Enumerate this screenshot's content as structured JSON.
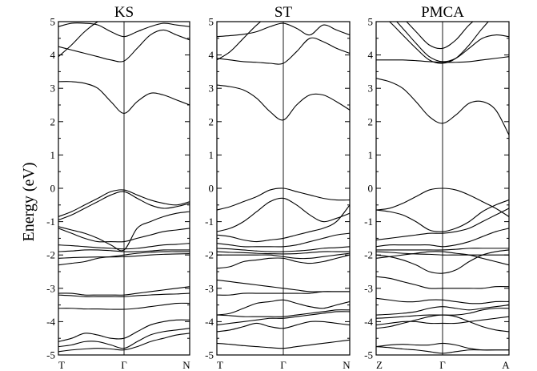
{
  "figure": {
    "ylabel": "Energy (eV)"
  },
  "chart_data": [
    {
      "type": "line",
      "title": "KS",
      "xlabel": "",
      "ylabel": "Energy (eV)",
      "ylim": [
        -5,
        5
      ],
      "yticks": [
        "5",
        "4",
        "3",
        "2",
        "1",
        "0",
        "-1",
        "-2",
        "-3",
        "-4",
        "-5"
      ],
      "kpoints": [
        "T",
        "Γ",
        "N"
      ],
      "x": [
        0,
        0.1,
        0.2,
        0.3,
        0.4,
        0.5,
        0.6,
        0.7,
        0.8,
        0.9,
        1.0
      ],
      "series": [
        {
          "values": [
            3.95,
            4.3,
            4.7,
            5.0,
            5.2,
            5.3,
            5.3,
            5.3,
            5.3,
            5.3,
            5.3
          ]
        },
        {
          "values": [
            4.85,
            4.95,
            4.95,
            4.9,
            4.7,
            4.55,
            4.7,
            4.85,
            4.95,
            4.9,
            4.85
          ]
        },
        {
          "values": [
            4.25,
            4.15,
            4.05,
            3.95,
            3.85,
            3.82,
            4.2,
            4.6,
            4.75,
            4.6,
            4.45
          ]
        },
        {
          "values": [
            3.2,
            3.2,
            3.15,
            3.0,
            2.6,
            2.25,
            2.6,
            2.85,
            2.8,
            2.65,
            2.5
          ]
        },
        {
          "values": [
            -0.85,
            -0.7,
            -0.5,
            -0.3,
            -0.1,
            -0.05,
            -0.2,
            -0.35,
            -0.45,
            -0.5,
            -0.4
          ]
        },
        {
          "values": [
            -0.95,
            -0.8,
            -0.6,
            -0.4,
            -0.2,
            -0.1,
            -0.3,
            -0.5,
            -0.6,
            -0.55,
            -0.45
          ]
        },
        {
          "values": [
            -1.15,
            -1.25,
            -1.35,
            -1.5,
            -1.7,
            -1.85,
            -1.2,
            -1.0,
            -0.85,
            -0.75,
            -0.7
          ]
        },
        {
          "values": [
            -1.2,
            -1.35,
            -1.5,
            -1.6,
            -1.6,
            -1.6,
            -1.5,
            -1.4,
            -1.3,
            -1.25,
            -1.2
          ]
        },
        {
          "values": [
            -1.7,
            -1.72,
            -1.75,
            -1.78,
            -1.8,
            -1.82,
            -1.8,
            -1.75,
            -1.7,
            -1.68,
            -1.65
          ]
        },
        {
          "values": [
            -1.9,
            -1.88,
            -1.85,
            -1.85,
            -1.87,
            -1.9,
            -1.9,
            -1.88,
            -1.85,
            -1.85,
            -1.85
          ]
        },
        {
          "values": [
            -2.3,
            -2.25,
            -2.2,
            -2.1,
            -2.05,
            -2.0,
            -1.95,
            -1.92,
            -1.9,
            -1.9,
            -1.9
          ]
        },
        {
          "values": [
            -2.1,
            -2.08,
            -2.07,
            -2.06,
            -2.06,
            -2.05,
            -2.03,
            -2.0,
            -1.98,
            -1.97,
            -1.96
          ]
        },
        {
          "values": [
            -3.15,
            -3.15,
            -3.2,
            -3.2,
            -3.2,
            -3.2,
            -3.15,
            -3.1,
            -3.05,
            -3.0,
            -2.95
          ]
        },
        {
          "values": [
            -3.2,
            -3.22,
            -3.25,
            -3.25,
            -3.25,
            -3.25,
            -3.22,
            -3.2,
            -3.18,
            -3.17,
            -3.15
          ]
        },
        {
          "values": [
            -3.6,
            -3.6,
            -3.62,
            -3.62,
            -3.63,
            -3.63,
            -3.6,
            -3.55,
            -3.5,
            -3.45,
            -3.45
          ]
        },
        {
          "values": [
            -4.6,
            -4.5,
            -4.35,
            -4.4,
            -4.5,
            -4.5,
            -4.3,
            -4.1,
            -4.0,
            -3.95,
            -3.95
          ]
        },
        {
          "values": [
            -4.75,
            -4.7,
            -4.6,
            -4.6,
            -4.7,
            -4.8,
            -4.6,
            -4.4,
            -4.3,
            -4.25,
            -4.2
          ]
        },
        {
          "values": [
            -4.9,
            -4.85,
            -4.82,
            -4.8,
            -4.82,
            -4.85,
            -4.75,
            -4.6,
            -4.5,
            -4.4,
            -4.35
          ]
        }
      ]
    },
    {
      "type": "line",
      "title": "ST",
      "xlabel": "",
      "ylabel": "",
      "ylim": [
        -5,
        5
      ],
      "yticks": [
        "5",
        "4",
        "3",
        "2",
        "1",
        "0",
        "-1",
        "-2",
        "-3",
        "-4",
        "-5"
      ],
      "kpoints": [
        "T",
        "Γ",
        "N"
      ],
      "x": [
        0,
        0.1,
        0.2,
        0.3,
        0.4,
        0.5,
        0.6,
        0.7,
        0.8,
        0.9,
        1.0
      ],
      "series": [
        {
          "values": [
            3.85,
            4.1,
            4.5,
            4.9,
            5.2,
            5.3,
            5.3,
            5.3,
            5.3,
            5.3,
            5.3
          ]
        },
        {
          "values": [
            4.55,
            4.58,
            4.62,
            4.7,
            4.85,
            4.95,
            4.8,
            4.6,
            4.9,
            4.75,
            4.6
          ]
        },
        {
          "values": [
            3.9,
            3.85,
            3.8,
            3.78,
            3.75,
            3.75,
            4.1,
            4.5,
            4.4,
            4.2,
            4.05
          ]
        },
        {
          "values": [
            3.1,
            3.05,
            2.95,
            2.7,
            2.3,
            2.05,
            2.5,
            2.8,
            2.8,
            2.6,
            2.35
          ]
        },
        {
          "values": [
            -0.65,
            -0.55,
            -0.4,
            -0.25,
            -0.05,
            0.0,
            -0.1,
            -0.2,
            -0.3,
            -0.35,
            -0.35
          ]
        },
        {
          "values": [
            -1.3,
            -1.2,
            -1.0,
            -0.7,
            -0.4,
            -0.3,
            -0.5,
            -0.8,
            -1.0,
            -0.9,
            -0.75
          ]
        },
        {
          "values": [
            -1.4,
            -1.45,
            -1.55,
            -1.6,
            -1.55,
            -1.5,
            -1.4,
            -1.3,
            -1.2,
            -1.0,
            -0.5
          ]
        },
        {
          "values": [
            -1.65,
            -1.7,
            -1.75,
            -1.75,
            -1.75,
            -1.75,
            -1.7,
            -1.6,
            -1.5,
            -1.4,
            -1.35
          ]
        },
        {
          "values": [
            -1.8,
            -1.82,
            -1.85,
            -1.88,
            -1.9,
            -1.9,
            -1.88,
            -1.85,
            -1.8,
            -1.78,
            -1.75
          ]
        },
        {
          "values": [
            -1.9,
            -1.92,
            -1.93,
            -1.95,
            -1.96,
            -1.97,
            -1.96,
            -1.93,
            -1.9,
            -1.9,
            -1.9
          ]
        },
        {
          "values": [
            -2.0,
            -2.0,
            -2.0,
            -2.0,
            -2.0,
            -2.05,
            -2.1,
            -2.1,
            -2.05,
            -2.0,
            -1.95
          ]
        },
        {
          "values": [
            -2.4,
            -2.35,
            -2.2,
            -2.15,
            -2.1,
            -2.1,
            -2.2,
            -2.25,
            -2.2,
            -2.1,
            -2.0
          ]
        },
        {
          "values": [
            -2.75,
            -2.8,
            -2.85,
            -2.9,
            -2.95,
            -3.0,
            -3.05,
            -3.1,
            -3.1,
            -3.1,
            -3.1
          ]
        },
        {
          "values": [
            -3.2,
            -3.2,
            -3.15,
            -3.15,
            -3.15,
            -3.15,
            -3.15,
            -3.15,
            -3.1,
            -3.1,
            -3.1
          ]
        },
        {
          "values": [
            -3.8,
            -3.75,
            -3.6,
            -3.45,
            -3.4,
            -3.35,
            -3.45,
            -3.55,
            -3.6,
            -3.5,
            -3.4
          ]
        },
        {
          "values": [
            -3.8,
            -3.82,
            -3.85,
            -3.85,
            -3.85,
            -3.85,
            -3.8,
            -3.75,
            -3.7,
            -3.65,
            -3.65
          ]
        },
        {
          "values": [
            -4.1,
            -4.05,
            -4.0,
            -3.95,
            -3.9,
            -3.9,
            -3.85,
            -3.8,
            -3.75,
            -3.7,
            -3.7
          ]
        },
        {
          "values": [
            -4.3,
            -4.25,
            -4.15,
            -4.05,
            -4.15,
            -4.2,
            -4.1,
            -4.0,
            -4.0,
            -4.05,
            -4.1
          ]
        },
        {
          "values": [
            -4.65,
            -4.68,
            -4.72,
            -4.75,
            -4.78,
            -4.8,
            -4.75,
            -4.7,
            -4.65,
            -4.6,
            -4.55
          ]
        }
      ]
    },
    {
      "type": "line",
      "title": "PMCA",
      "xlabel": "",
      "ylabel": "",
      "ylim": [
        -5,
        5
      ],
      "yticks": [
        "5",
        "4",
        "3",
        "2",
        "1",
        "0",
        "-1",
        "-2",
        "-3",
        "-4",
        "-5"
      ],
      "kpoints": [
        "Z",
        "Γ",
        "A"
      ],
      "x": [
        0,
        0.1,
        0.2,
        0.3,
        0.4,
        0.5,
        0.6,
        0.7,
        0.8,
        0.9,
        1.0
      ],
      "series": [
        {
          "values": [
            5.3,
            5.0,
            4.6,
            4.2,
            3.85,
            3.75,
            3.9,
            4.3,
            4.8,
            5.2,
            5.3
          ]
        },
        {
          "values": [
            5.3,
            5.2,
            4.8,
            4.35,
            3.95,
            3.8,
            3.9,
            4.2,
            4.5,
            4.6,
            4.55
          ]
        },
        {
          "values": [
            5.3,
            5.3,
            5.1,
            4.7,
            4.3,
            4.2,
            4.45,
            4.9,
            5.2,
            5.3,
            5.3
          ]
        },
        {
          "values": [
            3.85,
            3.85,
            3.85,
            3.83,
            3.8,
            3.78,
            3.78,
            3.8,
            3.85,
            3.9,
            3.95
          ]
        },
        {
          "values": [
            3.3,
            3.2,
            3.0,
            2.6,
            2.15,
            1.95,
            2.2,
            2.55,
            2.6,
            2.35,
            1.6
          ]
        },
        {
          "values": [
            -0.65,
            -0.6,
            -0.45,
            -0.25,
            -0.05,
            0.0,
            -0.05,
            -0.2,
            -0.4,
            -0.6,
            -0.85
          ]
        },
        {
          "values": [
            -0.65,
            -0.7,
            -0.8,
            -1.0,
            -1.25,
            -1.3,
            -1.2,
            -1.0,
            -0.7,
            -0.5,
            -0.35
          ]
        },
        {
          "values": [
            -1.55,
            -1.5,
            -1.45,
            -1.4,
            -1.35,
            -1.35,
            -1.3,
            -1.2,
            -1.0,
            -0.8,
            -0.6
          ]
        },
        {
          "values": [
            -1.75,
            -1.7,
            -1.7,
            -1.7,
            -1.7,
            -1.75,
            -1.7,
            -1.6,
            -1.45,
            -1.3,
            -1.2
          ]
        },
        {
          "values": [
            -1.85,
            -1.85,
            -1.85,
            -1.85,
            -1.85,
            -1.85,
            -1.83,
            -1.8,
            -1.8,
            -1.8,
            -1.8
          ]
        },
        {
          "values": [
            -1.9,
            -1.92,
            -1.95,
            -1.97,
            -1.98,
            -2.0,
            -2.0,
            -2.0,
            -2.0,
            -2.0,
            -2.0
          ]
        },
        {
          "values": [
            -2.1,
            -2.05,
            -2.0,
            -1.95,
            -1.9,
            -1.9,
            -1.95,
            -2.0,
            -2.1,
            -2.2,
            -2.3
          ]
        },
        {
          "values": [
            -2.0,
            -2.05,
            -2.15,
            -2.3,
            -2.5,
            -2.55,
            -2.45,
            -2.2,
            -2.0,
            -1.9,
            -1.85
          ]
        },
        {
          "values": [
            -2.65,
            -2.7,
            -2.8,
            -2.9,
            -3.0,
            -3.0,
            -3.0,
            -3.0,
            -3.0,
            -2.95,
            -2.95
          ]
        },
        {
          "values": [
            -3.3,
            -3.35,
            -3.4,
            -3.4,
            -3.35,
            -3.35,
            -3.4,
            -3.45,
            -3.45,
            -3.4,
            -3.4
          ]
        },
        {
          "values": [
            -3.8,
            -3.78,
            -3.75,
            -3.7,
            -3.6,
            -3.55,
            -3.6,
            -3.65,
            -3.6,
            -3.55,
            -3.5
          ]
        },
        {
          "values": [
            -3.9,
            -3.88,
            -3.85,
            -3.82,
            -3.8,
            -3.8,
            -3.8,
            -3.75,
            -3.65,
            -3.6,
            -3.6
          ]
        },
        {
          "values": [
            -4.1,
            -4.05,
            -4.0,
            -4.0,
            -4.05,
            -4.05,
            -4.05,
            -4.0,
            -3.95,
            -3.9,
            -3.85
          ]
        },
        {
          "values": [
            -4.2,
            -4.15,
            -4.05,
            -3.95,
            -3.85,
            -3.8,
            -3.85,
            -4.0,
            -4.15,
            -4.25,
            -4.3
          ]
        },
        {
          "values": [
            -4.75,
            -4.7,
            -4.68,
            -4.7,
            -4.7,
            -4.65,
            -4.7,
            -4.8,
            -4.85,
            -4.85,
            -4.85
          ]
        },
        {
          "values": [
            -4.75,
            -4.78,
            -4.82,
            -4.85,
            -4.9,
            -4.95,
            -4.9,
            -4.85,
            -4.85,
            -4.85,
            -4.85
          ]
        }
      ]
    }
  ]
}
